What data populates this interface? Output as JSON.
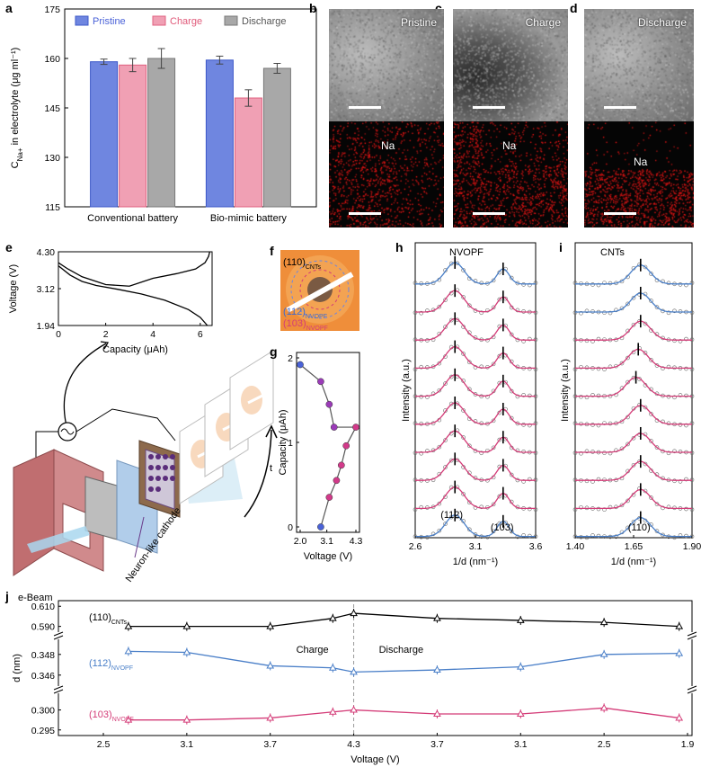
{
  "panel_labels": {
    "a": "a",
    "b": "b",
    "c": "c",
    "d": "d",
    "e": "e",
    "f": "f",
    "g": "g",
    "h": "h",
    "i": "i",
    "j": "j"
  },
  "colors": {
    "pristine": "#6f86e0",
    "charge": "#f0a0b4",
    "discharge": "#a8a8a8",
    "blue_line": "#4a7fc8",
    "pink_line": "#d43c78",
    "black_line": "#000000",
    "purple_point": "#9b3bb8",
    "magenta_point": "#d23a8a"
  },
  "tem_panels": [
    {
      "id": "b",
      "title": "Pristine",
      "eds_label": "Na"
    },
    {
      "id": "c",
      "title": "Charge",
      "eds_label": "Na"
    },
    {
      "id": "d",
      "title": "Discharge",
      "eds_label": "Na"
    }
  ],
  "schematic": {
    "ebeam_label": "e-Beam",
    "cathode_label": "Neuron-like cathode",
    "time_label": "t",
    "source_icon": "ac-source-icon"
  },
  "saed": {
    "label_110": "(110)",
    "sub_110": "CNTs",
    "label_112": "(112)",
    "sub_112": "NVOPF",
    "label_103": "(103)",
    "sub_103": "NVOPF"
  },
  "chart_data": [
    {
      "id": "a",
      "type": "bar",
      "categories": [
        "Conventional battery",
        "Bio-mimic battery"
      ],
      "series": [
        {
          "name": "Pristine",
          "values": [
            159.0,
            159.5
          ],
          "errors": [
            0.8,
            1.2
          ]
        },
        {
          "name": "Charge",
          "values": [
            158.0,
            148.0
          ],
          "errors": [
            2.0,
            2.5
          ]
        },
        {
          "name": "Discharge",
          "values": [
            160.0,
            157.0
          ],
          "errors": [
            3.0,
            1.5
          ]
        }
      ],
      "ylabel": "C",
      "ylabel_sub": "Na+",
      "ylabel_rest": " in electrolyte (μg ml⁻¹)",
      "ylim": [
        115,
        175
      ],
      "yticks": [
        "115",
        "130",
        "145",
        "160",
        "175"
      ],
      "legend": "top"
    },
    {
      "id": "e",
      "type": "line",
      "xlabel": "Capacity (μAh)",
      "ylabel": "Voltage (V)",
      "xlim": [
        0,
        6.5
      ],
      "ylim": [
        1.94,
        4.3
      ],
      "xticks": [
        "0",
        "2",
        "4",
        "6"
      ],
      "yticks": [
        "1.94",
        "3.12",
        "4.30"
      ],
      "series": [
        {
          "x": [
            0,
            0.4,
            1,
            2,
            3,
            4,
            5,
            5.8,
            6.2,
            6.35,
            6.4
          ],
          "y": [
            3.95,
            3.75,
            3.5,
            3.25,
            3.2,
            3.45,
            3.6,
            3.75,
            3.95,
            4.15,
            4.3
          ]
        },
        {
          "x": [
            0,
            0.5,
            1,
            1.6,
            2.5,
            3.5,
            4.5,
            5.5,
            6.0,
            6.3
          ],
          "y": [
            3.85,
            3.55,
            3.35,
            3.22,
            3.1,
            2.95,
            2.75,
            2.45,
            2.2,
            1.94
          ]
        }
      ]
    },
    {
      "id": "g",
      "type": "scatter",
      "xlabel": "Voltage (V)",
      "ylabel": "Capacity (μAh)",
      "xlim": [
        2.0,
        4.3
      ],
      "ylim": [
        0,
        2
      ],
      "xticks": [
        "2.0",
        "3.1",
        "4.3"
      ],
      "yticks": [
        "0",
        "1",
        "2"
      ],
      "x": [
        2.0,
        2.85,
        3.2,
        3.4,
        4.3,
        3.9,
        3.7,
        3.5,
        3.2,
        2.85
      ],
      "y": [
        1.92,
        1.72,
        1.45,
        1.18,
        1.18,
        0.96,
        0.73,
        0.55,
        0.35,
        0.0
      ]
    },
    {
      "id": "h",
      "type": "line",
      "title": "NVOPF",
      "xlabel": "1/d (nm⁻¹)",
      "ylabel": "Intensity (a.u.)",
      "xlim": [
        2.6,
        3.6
      ],
      "xticks": [
        "2.6",
        "3.1",
        "3.6"
      ],
      "peak_112": 2.93,
      "peak_103": 3.33,
      "annotations": [
        "(112)",
        "(103)"
      ],
      "traces": 10
    },
    {
      "id": "i",
      "type": "line",
      "title": "CNTs",
      "xlabel": "1/d (nm⁻¹)",
      "ylabel": "Intensity (a.u.)",
      "xlim": [
        1.4,
        1.9
      ],
      "xticks": [
        "1.40",
        "1.65",
        "1.90"
      ],
      "peaks": [
        1.68,
        1.68,
        1.68,
        1.67,
        1.66,
        1.68,
        1.68,
        1.68,
        1.68,
        1.68
      ],
      "annotation": "(110)",
      "traces": 10
    },
    {
      "id": "j",
      "type": "line",
      "xlabel": "Voltage (V)",
      "ylabel": "d (nm)",
      "xticks": [
        "2.5",
        "3.1",
        "3.7",
        "4.3",
        "3.7",
        "3.1",
        "2.5",
        "1.9"
      ],
      "charge_label": "Charge",
      "discharge_label": "Discharge",
      "series": [
        {
          "name": "(110)CNTs",
          "label": "(110)",
          "sub": "CNTs",
          "yticks": [
            "0.590",
            "0.610"
          ],
          "ylim": [
            0.587,
            0.612
          ],
          "values": [
            0.59,
            0.59,
            0.59,
            0.598,
            0.603,
            0.598,
            0.596,
            0.594,
            0.59
          ]
        },
        {
          "name": "(112)NVOPF",
          "label": "(112)",
          "sub": "NVOPF",
          "yticks": [
            "0.346",
            "0.348"
          ],
          "ylim": [
            0.3452,
            0.3492
          ],
          "values": [
            0.3483,
            0.3482,
            0.3469,
            0.3467,
            0.3463,
            0.3465,
            0.3468,
            0.348,
            0.3481
          ]
        },
        {
          "name": "(103)NVOPF",
          "label": "(103)",
          "sub": "NVOPF",
          "yticks": [
            "0.295",
            "0.300"
          ],
          "ylim": [
            0.2945,
            0.3035
          ],
          "values": [
            0.2975,
            0.2975,
            0.298,
            0.2995,
            0.3,
            0.299,
            0.299,
            0.3005,
            0.298
          ]
        }
      ]
    }
  ]
}
